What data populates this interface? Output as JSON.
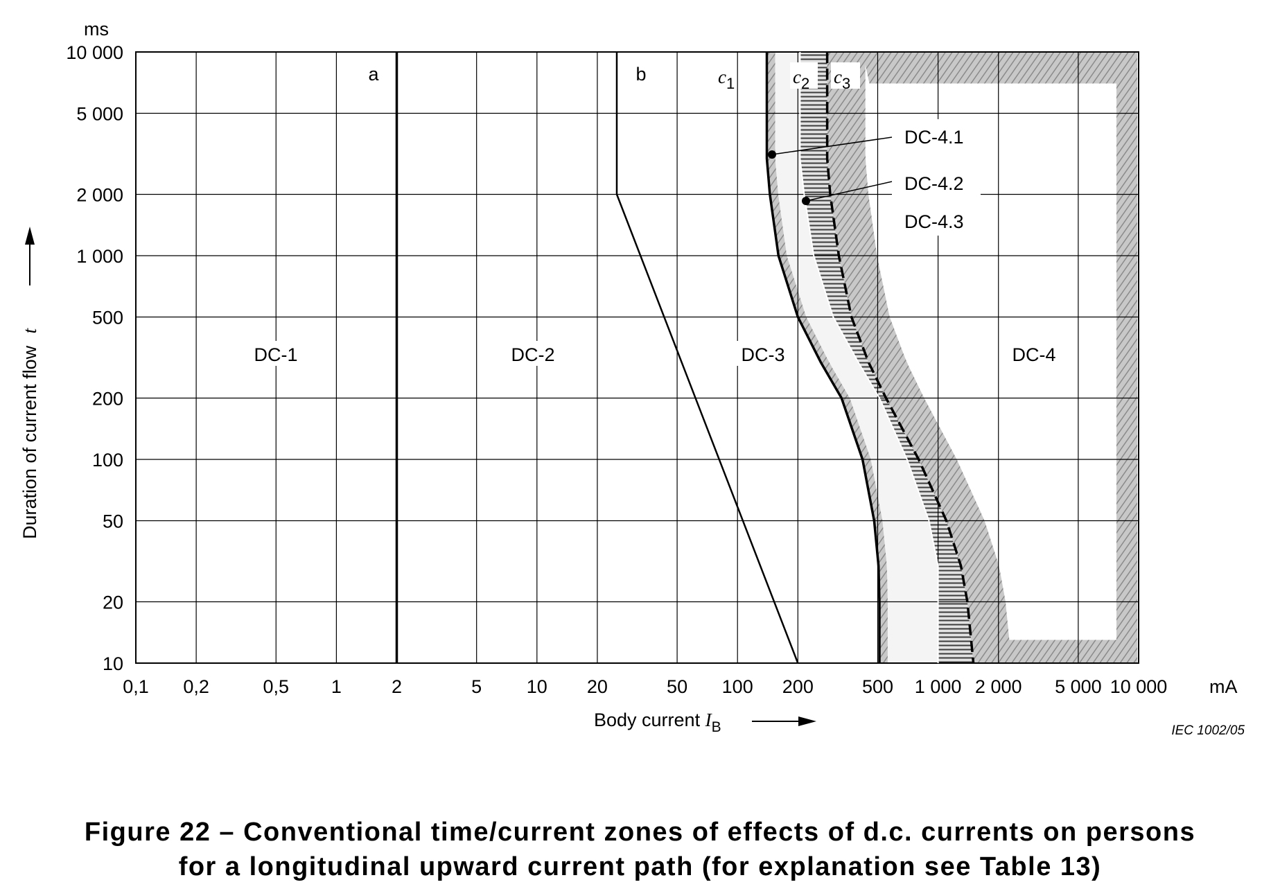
{
  "chart_data": {
    "type": "line",
    "x_scale": "log",
    "y_scale": "log",
    "xlim": [
      0.1,
      10000
    ],
    "ylim": [
      10,
      10000
    ],
    "x_tick_values": [
      0.1,
      0.2,
      0.5,
      1,
      2,
      5,
      10,
      20,
      50,
      100,
      200,
      500,
      1000,
      2000,
      5000,
      10000
    ],
    "x_tick_labels": [
      "0,1",
      "0,2",
      "0,5",
      "1",
      "2",
      "5",
      "10",
      "20",
      "50",
      "100",
      "200",
      "500",
      "1 000",
      "2 000",
      "5 000",
      "10 000"
    ],
    "x_unit": "mA",
    "y_tick_values": [
      10,
      20,
      50,
      100,
      200,
      500,
      1000,
      2000,
      5000,
      10000
    ],
    "y_tick_labels": [
      "10",
      "20",
      "50",
      "100",
      "200",
      "500",
      "1 000",
      "2 000",
      "5 000",
      "10 000"
    ],
    "y_unit": "ms",
    "xlabel_prefix": "Body current ",
    "xlabel_symbol": "I",
    "xlabel_subscript": "B",
    "ylabel_prefix": "Duration of current flow ",
    "ylabel_symbol": "t",
    "grid": true,
    "series": [
      {
        "name": "a",
        "style": "solid-thick",
        "points": [
          [
            2,
            10
          ],
          [
            2,
            10000
          ]
        ]
      },
      {
        "name": "b",
        "style": "solid",
        "points": [
          [
            25,
            10000
          ],
          [
            25,
            2000
          ],
          [
            200,
            10
          ]
        ]
      },
      {
        "name": "c1",
        "style": "solid-thick",
        "points": [
          [
            140,
            10000
          ],
          [
            140,
            3000
          ],
          [
            145,
            2000
          ],
          [
            160,
            1000
          ],
          [
            200,
            500
          ],
          [
            260,
            300
          ],
          [
            330,
            200
          ],
          [
            420,
            100
          ],
          [
            480,
            50
          ],
          [
            505,
            30
          ],
          [
            510,
            20
          ],
          [
            510,
            10
          ]
        ]
      },
      {
        "name": "c2",
        "style": "boundary",
        "points": [
          [
            205,
            10000
          ],
          [
            205,
            3000
          ],
          [
            215,
            2000
          ],
          [
            240,
            1000
          ],
          [
            300,
            500
          ],
          [
            400,
            300
          ],
          [
            510,
            200
          ],
          [
            700,
            100
          ],
          [
            900,
            50
          ],
          [
            1000,
            30
          ],
          [
            1000,
            20
          ],
          [
            1000,
            10
          ]
        ]
      },
      {
        "name": "c3",
        "style": "dashed-thick",
        "points": [
          [
            280,
            10000
          ],
          [
            280,
            3000
          ],
          [
            290,
            2000
          ],
          [
            320,
            1000
          ],
          [
            370,
            500
          ],
          [
            450,
            300
          ],
          [
            550,
            200
          ],
          [
            800,
            100
          ],
          [
            1100,
            50
          ],
          [
            1300,
            30
          ],
          [
            1400,
            20
          ],
          [
            1500,
            10
          ]
        ]
      }
    ],
    "curve_labels": [
      {
        "base": "c",
        "sub": "1"
      },
      {
        "base": "c",
        "sub": "2"
      },
      {
        "base": "c",
        "sub": "3"
      }
    ],
    "line_labels": [
      "a",
      "b"
    ],
    "zones": [
      "DC-1",
      "DC-2",
      "DC-3",
      "DC-4"
    ],
    "annotations": [
      "DC-4.1",
      "DC-4.2",
      "DC-4.3"
    ],
    "credit": "IEC   1002/05"
  },
  "caption": {
    "line1": "Figure 22 – Conventional time/current zones of effects of d.c. currents on persons",
    "line2": "for a longitudinal upward current path (for explanation see Table 13)"
  },
  "colors": {
    "ink": "#000000",
    "grid": "#000000",
    "shade": "#b5b5b5",
    "shade_light": "#d9d9d9",
    "background": "#ffffff"
  }
}
